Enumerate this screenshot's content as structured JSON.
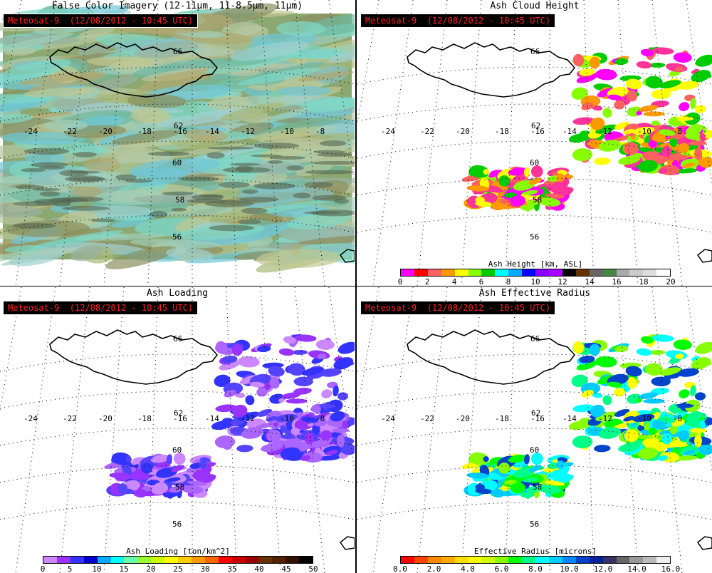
{
  "panels": [
    {
      "title": "False Color Imagery (12-11μm, 11-8.5μm, 11μm)",
      "satellite": "Meteosat-9  (12/08/2012 - 10:45 UTC)"
    },
    {
      "title": "Ash Cloud Height",
      "satellite": "Meteosat-9  (12/08/2012 - 10:45 UTC)",
      "legend": {
        "title": "Ash Height [km, ASL]",
        "ticks": [
          "0",
          "2",
          "4",
          "6",
          "8",
          "10",
          "12",
          "14",
          "16",
          "18",
          "20"
        ],
        "colors": [
          "#ff00ff",
          "#ff0000",
          "#ff6060",
          "#ff9900",
          "#ffff00",
          "#88ff00",
          "#00cc00",
          "#00ffff",
          "#00aaff",
          "#0000ff",
          "#8800ff",
          "#aa00ff",
          "#000000",
          "#663300",
          "#666666",
          "#448844",
          "#aaaaaa",
          "#cccccc",
          "#dddddd",
          "#ffffff"
        ]
      }
    },
    {
      "title": "Ash Loading",
      "satellite": "Meteosat-9  (12/08/2012 - 10:45 UTC)",
      "legend": {
        "title": "Ash Loading [ton/km^2]",
        "ticks": [
          "0",
          "5",
          "10",
          "15",
          "20",
          "25",
          "30",
          "35",
          "40",
          "45",
          "50"
        ],
        "colors": [
          "#cc88ff",
          "#9933ff",
          "#3333ff",
          "#0000cc",
          "#00aaff",
          "#00ffff",
          "#66ffaa",
          "#99ff33",
          "#ccff00",
          "#ffff00",
          "#ffcc00",
          "#ff9900",
          "#ff6600",
          "#ff0000",
          "#cc0000",
          "#990000",
          "#663300",
          "#552200",
          "#331100",
          "#000000"
        ]
      }
    },
    {
      "title": "Ash Effective Radius",
      "satellite": "Meteosat-9  (12/08/2012 - 10:45 UTC)",
      "legend": {
        "title": "Effective Radius [microns]",
        "ticks": [
          "0.0",
          "2.0",
          "4.0",
          "6.0",
          "8.0",
          "10.0",
          "12.0",
          "14.0",
          "16.0"
        ],
        "colors": [
          "#ff0000",
          "#ff4400",
          "#ff8800",
          "#ffaa00",
          "#ffdd00",
          "#ffff00",
          "#ccff00",
          "#88ff00",
          "#00ff00",
          "#00ff88",
          "#00ffff",
          "#00ccff",
          "#0088ff",
          "#0044cc",
          "#002299",
          "#333366",
          "#666666",
          "#999999",
          "#bbbbbb",
          "#eeeeee"
        ]
      }
    }
  ],
  "grid": {
    "lon_labels": [
      "-24",
      "-22",
      "-20",
      "-18",
      "-16",
      "-14",
      "-12",
      "-10",
      "-8"
    ],
    "lat_labels": [
      "62",
      "60",
      "58",
      "56"
    ],
    "iceland_lat_label": "66"
  }
}
